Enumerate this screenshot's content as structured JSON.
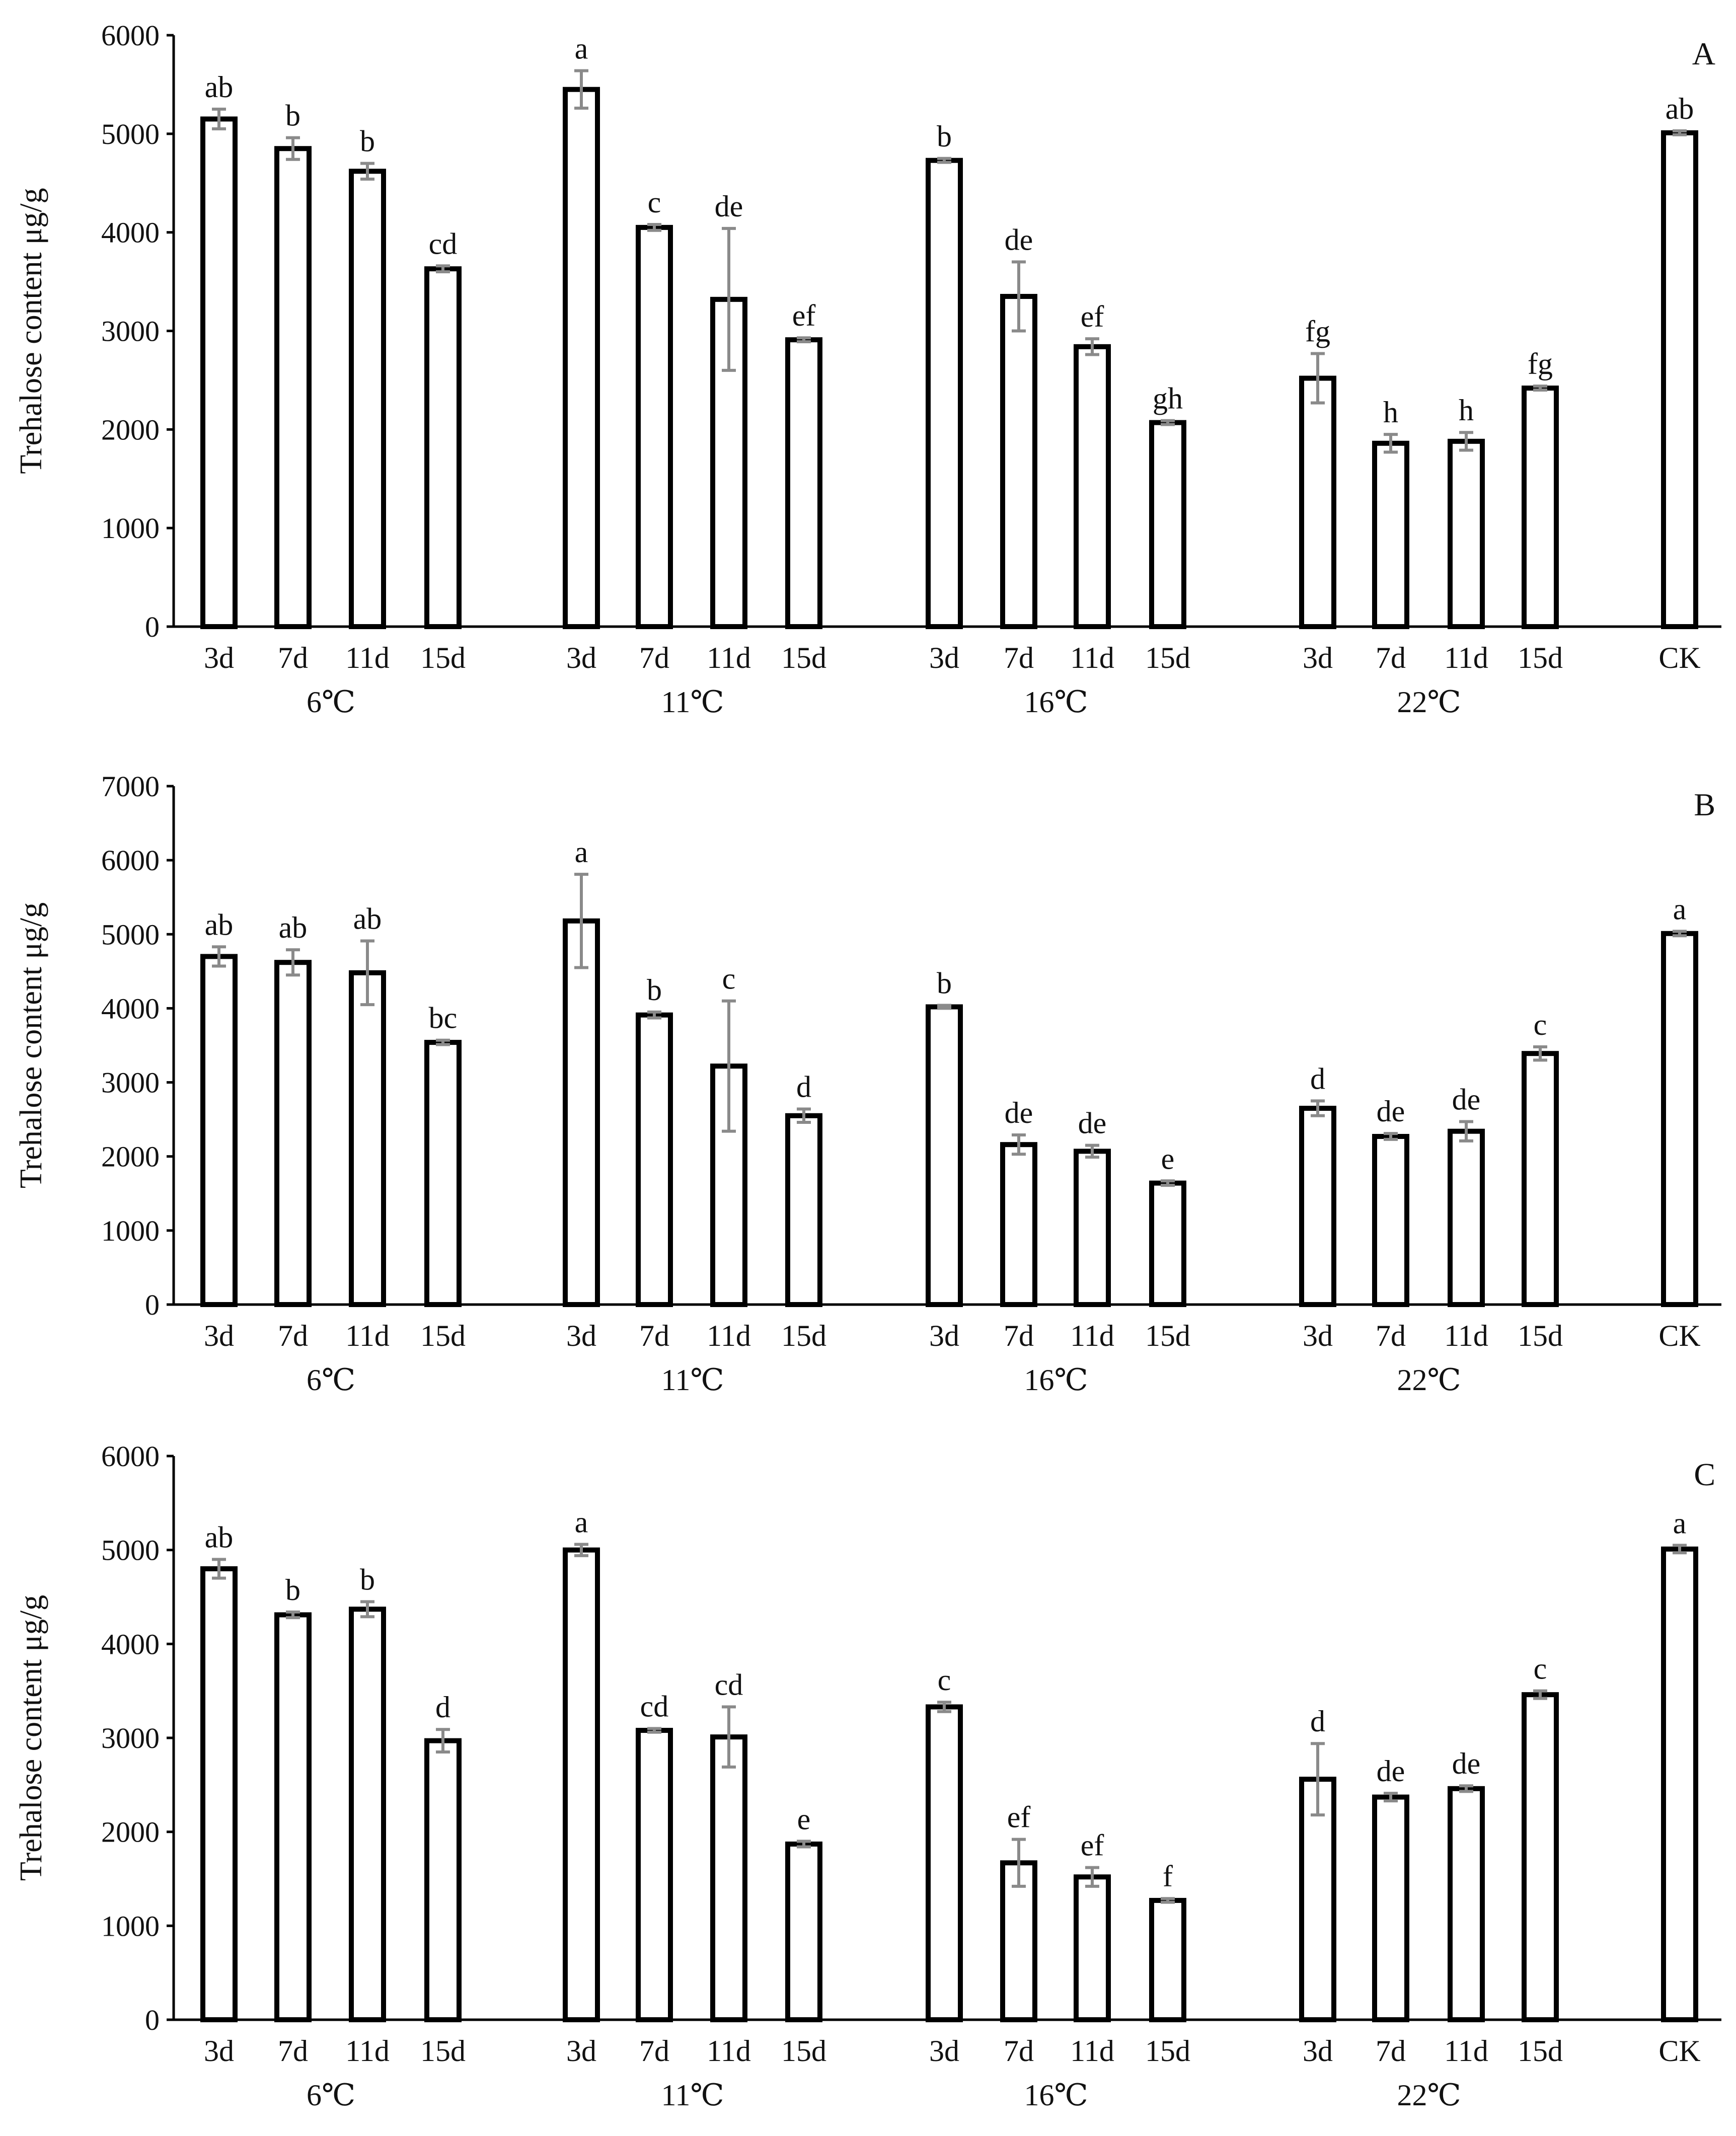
{
  "chart_data": [
    {
      "type": "bar",
      "panel_label": "A",
      "ylabel": "Trehalose content μg/g",
      "ylim": [
        0,
        6000
      ],
      "yticks": [
        0,
        1000,
        2000,
        3000,
        4000,
        5000,
        6000
      ],
      "groups": [
        {
          "name": "6℃",
          "bars": [
            {
              "label": "3d",
              "value": 5150,
              "error": 100,
              "sig": "ab"
            },
            {
              "label": "7d",
              "value": 4850,
              "error": 110,
              "sig": "b"
            },
            {
              "label": "11d",
              "value": 4620,
              "error": 80,
              "sig": "b"
            },
            {
              "label": "15d",
              "value": 3630,
              "error": 30,
              "sig": "cd"
            }
          ]
        },
        {
          "name": "11℃",
          "bars": [
            {
              "label": "3d",
              "value": 5450,
              "error": 190,
              "sig": "a"
            },
            {
              "label": "7d",
              "value": 4050,
              "error": 30,
              "sig": "c"
            },
            {
              "label": "11d",
              "value": 3320,
              "error": 720,
              "sig": "de"
            },
            {
              "label": "15d",
              "value": 2910,
              "error": 20,
              "sig": "ef"
            }
          ]
        },
        {
          "name": "16℃",
          "bars": [
            {
              "label": "3d",
              "value": 4730,
              "error": 20,
              "sig": "b"
            },
            {
              "label": "7d",
              "value": 3350,
              "error": 350,
              "sig": "de"
            },
            {
              "label": "11d",
              "value": 2840,
              "error": 80,
              "sig": "ef"
            },
            {
              "label": "15d",
              "value": 2070,
              "error": 20,
              "sig": "gh"
            }
          ]
        },
        {
          "name": "22℃",
          "bars": [
            {
              "label": "3d",
              "value": 2520,
              "error": 250,
              "sig": "fg"
            },
            {
              "label": "7d",
              "value": 1860,
              "error": 90,
              "sig": "h"
            },
            {
              "label": "11d",
              "value": 1880,
              "error": 90,
              "sig": "h"
            },
            {
              "label": "15d",
              "value": 2420,
              "error": 20,
              "sig": "fg"
            }
          ]
        },
        {
          "name": "",
          "bars": [
            {
              "label": "CK",
              "value": 5010,
              "error": 20,
              "sig": "ab"
            }
          ]
        }
      ]
    },
    {
      "type": "bar",
      "panel_label": "B",
      "ylabel": "Trehalose content μg/g",
      "ylim": [
        0,
        7000
      ],
      "yticks": [
        0,
        1000,
        2000,
        3000,
        4000,
        5000,
        6000,
        7000
      ],
      "groups": [
        {
          "name": "6℃",
          "bars": [
            {
              "label": "3d",
              "value": 4700,
              "error": 130,
              "sig": "ab"
            },
            {
              "label": "7d",
              "value": 4620,
              "error": 170,
              "sig": "ab"
            },
            {
              "label": "11d",
              "value": 4480,
              "error": 430,
              "sig": "ab"
            },
            {
              "label": "15d",
              "value": 3540,
              "error": 30,
              "sig": "bc"
            }
          ]
        },
        {
          "name": "11℃",
          "bars": [
            {
              "label": "3d",
              "value": 5180,
              "error": 630,
              "sig": "a"
            },
            {
              "label": "7d",
              "value": 3910,
              "error": 40,
              "sig": "b"
            },
            {
              "label": "11d",
              "value": 3220,
              "error": 880,
              "sig": "c"
            },
            {
              "label": "15d",
              "value": 2550,
              "error": 90,
              "sig": "d"
            }
          ]
        },
        {
          "name": "16℃",
          "bars": [
            {
              "label": "3d",
              "value": 4020,
              "error": 20,
              "sig": "b"
            },
            {
              "label": "7d",
              "value": 2160,
              "error": 130,
              "sig": "de"
            },
            {
              "label": "11d",
              "value": 2070,
              "error": 80,
              "sig": "de"
            },
            {
              "label": "15d",
              "value": 1640,
              "error": 30,
              "sig": "e"
            }
          ]
        },
        {
          "name": "22℃",
          "bars": [
            {
              "label": "3d",
              "value": 2650,
              "error": 100,
              "sig": "d"
            },
            {
              "label": "7d",
              "value": 2270,
              "error": 40,
              "sig": "de"
            },
            {
              "label": "11d",
              "value": 2340,
              "error": 130,
              "sig": "de"
            },
            {
              "label": "15d",
              "value": 3390,
              "error": 90,
              "sig": "c"
            }
          ]
        },
        {
          "name": "",
          "bars": [
            {
              "label": "CK",
              "value": 5010,
              "error": 30,
              "sig": "a"
            }
          ]
        }
      ]
    },
    {
      "type": "bar",
      "panel_label": "C",
      "ylabel": "Trehalose content μg/g",
      "ylim": [
        0,
        6000
      ],
      "yticks": [
        0,
        1000,
        2000,
        3000,
        4000,
        5000,
        6000
      ],
      "groups": [
        {
          "name": "6℃",
          "bars": [
            {
              "label": "3d",
              "value": 4800,
              "error": 100,
              "sig": "ab"
            },
            {
              "label": "7d",
              "value": 4310,
              "error": 30,
              "sig": "b"
            },
            {
              "label": "11d",
              "value": 4370,
              "error": 80,
              "sig": "b"
            },
            {
              "label": "15d",
              "value": 2970,
              "error": 120,
              "sig": "d"
            }
          ]
        },
        {
          "name": "11℃",
          "bars": [
            {
              "label": "3d",
              "value": 5000,
              "error": 60,
              "sig": "a"
            },
            {
              "label": "7d",
              "value": 3080,
              "error": 20,
              "sig": "cd"
            },
            {
              "label": "11d",
              "value": 3010,
              "error": 320,
              "sig": "cd"
            },
            {
              "label": "15d",
              "value": 1870,
              "error": 30,
              "sig": "e"
            }
          ]
        },
        {
          "name": "16℃",
          "bars": [
            {
              "label": "3d",
              "value": 3330,
              "error": 50,
              "sig": "c"
            },
            {
              "label": "7d",
              "value": 1670,
              "error": 250,
              "sig": "ef"
            },
            {
              "label": "11d",
              "value": 1520,
              "error": 100,
              "sig": "ef"
            },
            {
              "label": "15d",
              "value": 1270,
              "error": 20,
              "sig": "f"
            }
          ]
        },
        {
          "name": "22℃",
          "bars": [
            {
              "label": "3d",
              "value": 2560,
              "error": 380,
              "sig": "d"
            },
            {
              "label": "7d",
              "value": 2370,
              "error": 40,
              "sig": "de"
            },
            {
              "label": "11d",
              "value": 2460,
              "error": 30,
              "sig": "de"
            },
            {
              "label": "15d",
              "value": 3460,
              "error": 40,
              "sig": "c"
            }
          ]
        },
        {
          "name": "",
          "bars": [
            {
              "label": "CK",
              "value": 5010,
              "error": 40,
              "sig": "a"
            }
          ]
        }
      ]
    }
  ]
}
